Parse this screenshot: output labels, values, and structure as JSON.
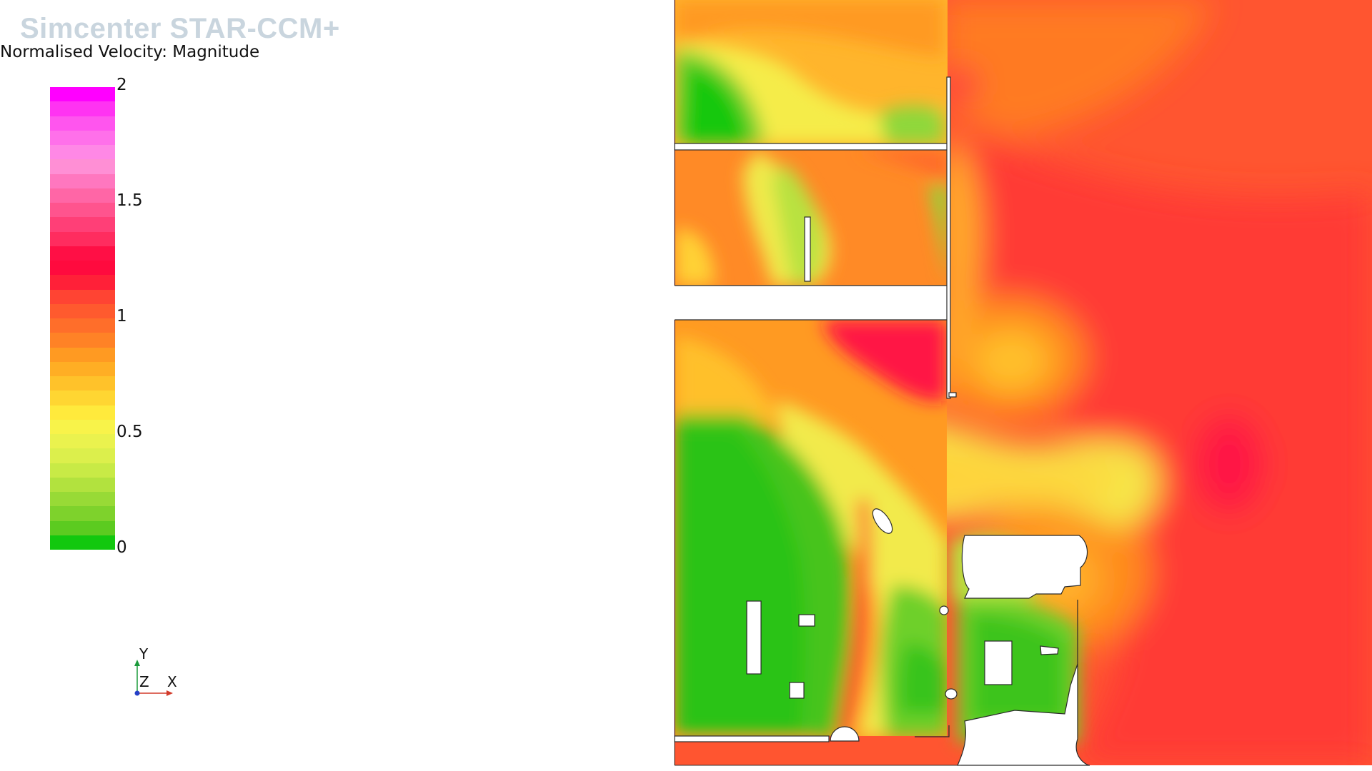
{
  "app": {
    "title": "Simcenter STAR-CCM+"
  },
  "scalar_bar": {
    "title": "Normalised Velocity: Magnitude",
    "ticks": [
      "2",
      "1.5",
      "1",
      "0.5",
      "0"
    ],
    "bands": [
      "#ff00ff",
      "#ff33f2",
      "#ff55ee",
      "#ff70ea",
      "#ff88e6",
      "#ff8fd5",
      "#ff77bf",
      "#ff66a6",
      "#ff548e",
      "#ff3f77",
      "#ff2c5f",
      "#ff0f45",
      "#ff0a3e",
      "#ff2038",
      "#ff4433",
      "#ff5a2e",
      "#ff6e2a",
      "#ff8226",
      "#ff9a22",
      "#ffae24",
      "#ffc22a",
      "#ffd632",
      "#ffea3c",
      "#f8f34a",
      "#eaf24e",
      "#dcef4c",
      "#c8ea46",
      "#b2e23e",
      "#98da36",
      "#7ed22c",
      "#5ccb20",
      "#12c80e"
    ]
  },
  "axes": {
    "y_label": "Y",
    "z_label": "Z",
    "x_label": "X"
  },
  "colors": {
    "fluid_green": "#14c810",
    "fluid_orange": "#ff8c1a",
    "fluid_red": "#ff3b2d",
    "solid": "#ffffff",
    "outline": "#333333"
  }
}
